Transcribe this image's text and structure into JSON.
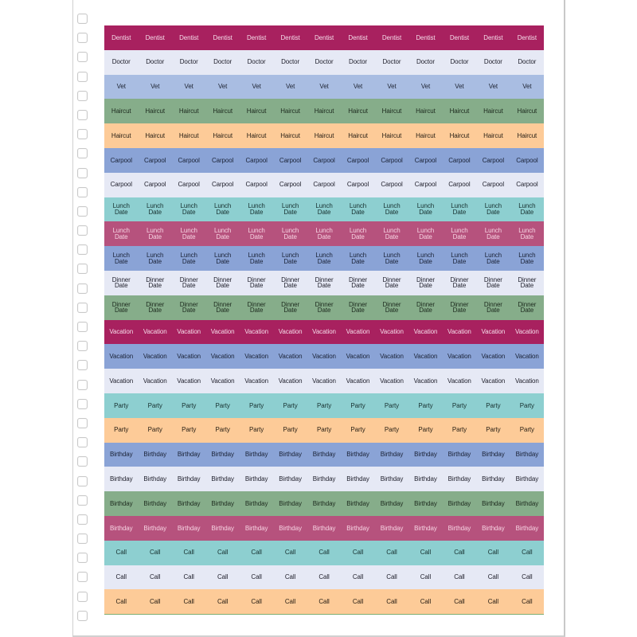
{
  "sheet": {
    "columns": 13,
    "hole_count": 32,
    "rows": [
      {
        "label": "Dentist",
        "bg": "#a8215f",
        "fg": "#f4dbe8"
      },
      {
        "label": "Doctor",
        "bg": "#e6e9f5",
        "fg": "#1e1e2a"
      },
      {
        "label": "Vet",
        "bg": "#a9bde2",
        "fg": "#1e2433"
      },
      {
        "label": "Haircut",
        "bg": "#86ad8a",
        "fg": "#1d2a1e"
      },
      {
        "label": "Haircut",
        "bg": "#fdcb98",
        "fg": "#2a2116"
      },
      {
        "label": "Carpool",
        "bg": "#8aa3d6",
        "fg": "#1a2236"
      },
      {
        "label": "Carpool",
        "bg": "#e6e9f5",
        "fg": "#1e1e2a"
      },
      {
        "label": "Lunch\nDate",
        "bg": "#8dcfd0",
        "fg": "#17302f"
      },
      {
        "label": "Lunch\nDate",
        "bg": "#b6527d",
        "fg": "#f7d3e2"
      },
      {
        "label": "Lunch\nDate",
        "bg": "#8aa3d6",
        "fg": "#1a2236"
      },
      {
        "label": "Dinner\nDate",
        "bg": "#e6e9f5",
        "fg": "#1e1e2a"
      },
      {
        "label": "Dinner\nDate",
        "bg": "#86ad8a",
        "fg": "#1d2a1e"
      },
      {
        "label": "Vacation",
        "bg": "#a8215f",
        "fg": "#f4dbe8"
      },
      {
        "label": "Vacation",
        "bg": "#8aa3d6",
        "fg": "#1a2236"
      },
      {
        "label": "Vacation",
        "bg": "#e6e9f5",
        "fg": "#1e1e2a"
      },
      {
        "label": "Party",
        "bg": "#8dcfd0",
        "fg": "#17302f"
      },
      {
        "label": "Party",
        "bg": "#fdcb98",
        "fg": "#2a2116"
      },
      {
        "label": "Birthday",
        "bg": "#8aa3d6",
        "fg": "#1a2236"
      },
      {
        "label": "Birthday",
        "bg": "#e6e9f5",
        "fg": "#1e1e2a"
      },
      {
        "label": "Birthday",
        "bg": "#86ad8a",
        "fg": "#1d2a1e"
      },
      {
        "label": "Birthday",
        "bg": "#b6527d",
        "fg": "#f7d3e2"
      },
      {
        "label": "Call",
        "bg": "#8dcfd0",
        "fg": "#17302f"
      },
      {
        "label": "Call",
        "bg": "#e6e9f5",
        "fg": "#1e1e2a"
      },
      {
        "label": "Call",
        "bg": "#fdcb98",
        "fg": "#2a2116"
      }
    ]
  }
}
